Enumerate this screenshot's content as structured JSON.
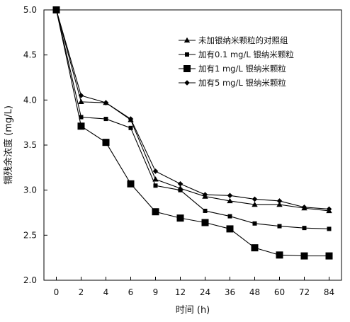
{
  "chart_data": {
    "type": "line",
    "title": "",
    "xlabel": "时间 (h)",
    "ylabel": "镉残余浓度 (mg/L)",
    "x": [
      "0",
      "2",
      "4",
      "6",
      "9",
      "12",
      "24",
      "36",
      "48",
      "60",
      "72",
      "84"
    ],
    "ylim": [
      2.0,
      5.0
    ],
    "yticks": [
      "2.0",
      "2.5",
      "3.0",
      "3.5",
      "4.0",
      "4.5",
      "5.0"
    ],
    "grid": false,
    "legend_position": "top-right",
    "series": [
      {
        "name": "未加银纳米颗粒的对照组",
        "marker": "triangle",
        "values": [
          5.0,
          3.98,
          3.97,
          3.78,
          3.12,
          3.02,
          2.93,
          2.88,
          2.84,
          2.84,
          2.8,
          2.77
        ]
      },
      {
        "name": "加有0.1 mg/L 银纳米颗粒",
        "marker": "small-square",
        "values": [
          5.0,
          3.81,
          3.79,
          3.69,
          3.05,
          3.0,
          2.77,
          2.71,
          2.63,
          2.6,
          2.58,
          2.57
        ]
      },
      {
        "name": "加有1 mg/L 银纳米颗粒",
        "marker": "large-square",
        "values": [
          5.0,
          3.71,
          3.53,
          3.07,
          2.76,
          2.69,
          2.64,
          2.57,
          2.36,
          2.28,
          2.27,
          2.27
        ]
      },
      {
        "name": "加有5 mg/L 银纳米颗粒",
        "marker": "diamond",
        "values": [
          5.0,
          4.05,
          3.97,
          3.79,
          3.21,
          3.07,
          2.95,
          2.94,
          2.9,
          2.88,
          2.81,
          2.79
        ]
      }
    ]
  }
}
